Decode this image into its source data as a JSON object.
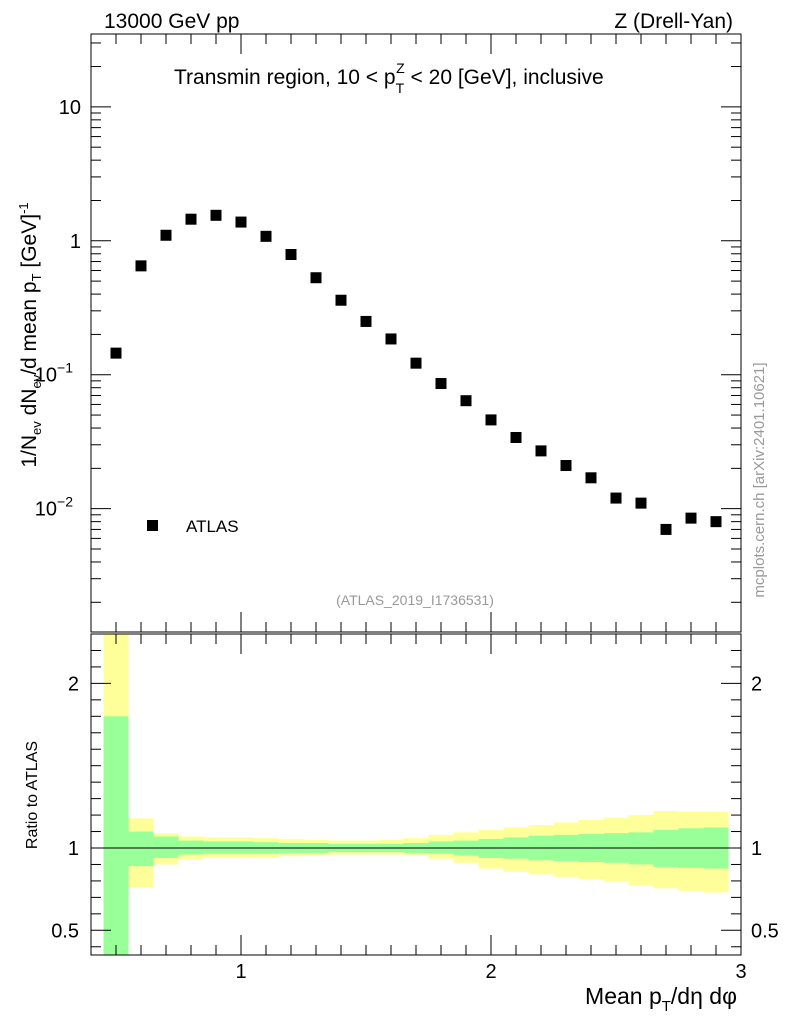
{
  "header": {
    "left": "13000 GeV pp",
    "right": "Z (Drell-Yan)"
  },
  "chart_data": {
    "type": "scatter",
    "title": "Transmin region, 10 < p_T^Z < 20 [GeV], inclusive",
    "title_parts": {
      "pre": "Transmin region, 10 < p",
      "sub": "T",
      "sup": "Z",
      "post": " < 20 [GeV], inclusive"
    },
    "xlabel": "Mean p_T/dη dφ",
    "xlabel_parts": {
      "pre": "Mean p",
      "sub": "T",
      "post": "/dη dφ"
    },
    "ylabel": "1/N_ev dN_ev/d mean p_T [GeV]^-1",
    "ylabel_parts": {
      "a": "1/N",
      "a_sub": "ev",
      "b": " dN",
      "b_sub": "ev",
      "c": "/d mean p",
      "c_sub": "T",
      "d": " [GeV]",
      "d_sup": "-1"
    },
    "xlim": [
      0.4,
      3.0
    ],
    "ylim": [
      0.0012,
      35
    ],
    "yscale": "log",
    "x_ticks": [
      1,
      2,
      3
    ],
    "y_ticks": [
      0.01,
      0.1,
      1,
      10
    ],
    "y_tick_labels": [
      "10^-2",
      "10^-1",
      "1",
      "10"
    ],
    "legend": {
      "position": "bottom-left",
      "entries": [
        "ATLAS"
      ]
    },
    "analysis_id": "(ATLAS_2019_I1736531)",
    "watermark": "mcplots.cern.ch [arXiv:2401.10621]",
    "series": [
      {
        "name": "ATLAS",
        "marker": "square",
        "x": [
          0.5,
          0.6,
          0.7,
          0.8,
          0.9,
          1.0,
          1.1,
          1.2,
          1.3,
          1.4,
          1.5,
          1.6,
          1.7,
          1.8,
          1.9,
          2.0,
          2.1,
          2.2,
          2.3,
          2.4,
          2.5,
          2.6,
          2.7,
          2.8,
          2.9
        ],
        "y": [
          0.145,
          0.65,
          1.1,
          1.45,
          1.55,
          1.38,
          1.08,
          0.79,
          0.53,
          0.36,
          0.25,
          0.185,
          0.122,
          0.086,
          0.064,
          0.046,
          0.034,
          0.027,
          0.021,
          0.017,
          0.012,
          0.011,
          0.007,
          0.0085,
          0.008
        ]
      }
    ],
    "ratio": {
      "ylabel": "Ratio to ATLAS",
      "ylim": [
        0.35,
        2.3
      ],
      "y_ticks": [
        0.5,
        1,
        2
      ],
      "y_tick_labels": [
        "0.5",
        "1",
        "2"
      ],
      "reference": 1,
      "bins": [
        0.45,
        0.55,
        0.65,
        0.75,
        0.85,
        0.95,
        1.05,
        1.15,
        1.25,
        1.35,
        1.45,
        1.55,
        1.65,
        1.75,
        1.85,
        1.95,
        2.05,
        2.15,
        2.25,
        2.35,
        2.45,
        2.55,
        2.65,
        2.75,
        2.85,
        2.95
      ],
      "stat_band": {
        "color": "#99ff99",
        "low": [
          0.3,
          0.89,
          0.94,
          0.96,
          0.965,
          0.965,
          0.965,
          0.97,
          0.97,
          0.975,
          0.975,
          0.975,
          0.97,
          0.965,
          0.955,
          0.94,
          0.935,
          0.925,
          0.92,
          0.915,
          0.91,
          0.9,
          0.885,
          0.88,
          0.875
        ],
        "high": [
          1.8,
          1.1,
          1.07,
          1.045,
          1.04,
          1.04,
          1.035,
          1.03,
          1.03,
          1.025,
          1.025,
          1.025,
          1.03,
          1.04,
          1.045,
          1.055,
          1.065,
          1.075,
          1.08,
          1.085,
          1.09,
          1.095,
          1.11,
          1.12,
          1.125
        ]
      },
      "syst_band": {
        "color": "#ffff99",
        "low": [
          0.3,
          0.76,
          0.9,
          0.93,
          0.94,
          0.94,
          0.945,
          0.95,
          0.955,
          0.96,
          0.96,
          0.96,
          0.955,
          0.935,
          0.91,
          0.875,
          0.855,
          0.84,
          0.825,
          0.81,
          0.795,
          0.775,
          0.755,
          0.74,
          0.73
        ],
        "high": [
          2.3,
          1.18,
          1.09,
          1.07,
          1.065,
          1.065,
          1.06,
          1.055,
          1.05,
          1.045,
          1.045,
          1.05,
          1.06,
          1.08,
          1.095,
          1.11,
          1.125,
          1.14,
          1.155,
          1.17,
          1.185,
          1.2,
          1.225,
          1.22,
          1.22
        ]
      }
    }
  }
}
